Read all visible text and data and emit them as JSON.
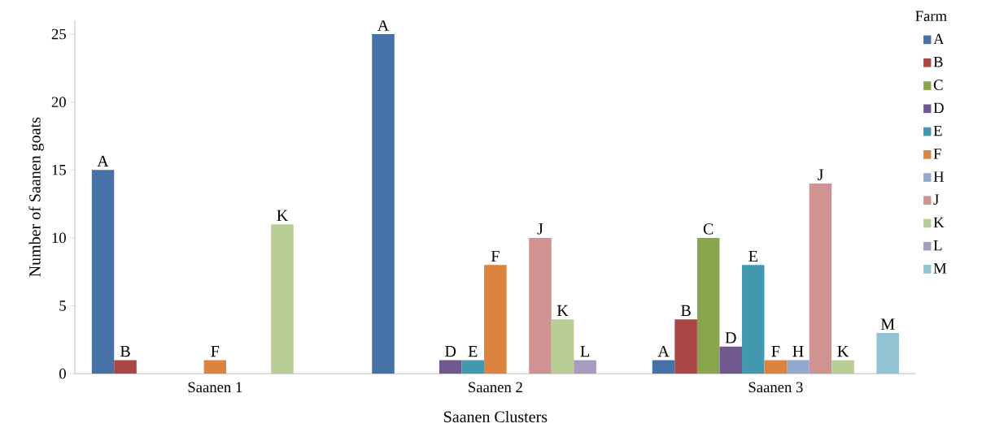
{
  "chart_data": {
    "type": "bar",
    "xlabel": "Saanen Clusters",
    "ylabel": "Number of Saanen goats",
    "legend_title": "Farm",
    "legend": "right",
    "categories": [
      "Saanen 1",
      "Saanen 2",
      "Saanen 3"
    ],
    "ylim": [
      0,
      26
    ],
    "yticks": [
      0,
      5,
      10,
      15,
      20,
      25
    ],
    "grid": false,
    "series": [
      {
        "name": "A",
        "color": "#4572a7",
        "values": [
          15,
          25,
          1
        ],
        "value_labels": [
          "A",
          "A",
          "A"
        ]
      },
      {
        "name": "B",
        "color": "#aa4643",
        "values": [
          1,
          0,
          4
        ],
        "value_labels": [
          "B",
          null,
          "B"
        ]
      },
      {
        "name": "C",
        "color": "#89a54e",
        "values": [
          0,
          0,
          10
        ],
        "value_labels": [
          null,
          null,
          "C"
        ]
      },
      {
        "name": "D",
        "color": "#71588f",
        "values": [
          0,
          1,
          2
        ],
        "value_labels": [
          null,
          "D",
          "D"
        ]
      },
      {
        "name": "E",
        "color": "#4198af",
        "values": [
          0,
          1,
          8
        ],
        "value_labels": [
          null,
          "E",
          "E"
        ]
      },
      {
        "name": "F",
        "color": "#db843d",
        "values": [
          1,
          8,
          1
        ],
        "value_labels": [
          "F",
          "F",
          "F"
        ]
      },
      {
        "name": "H",
        "color": "#93a9cf",
        "values": [
          0,
          0,
          1
        ],
        "value_labels": [
          null,
          null,
          "H"
        ]
      },
      {
        "name": "J",
        "color": "#d19392",
        "values": [
          0,
          10,
          14
        ],
        "value_labels": [
          null,
          "J",
          "J"
        ]
      },
      {
        "name": "K",
        "color": "#b9cd96",
        "values": [
          11,
          4,
          1
        ],
        "value_labels": [
          "K",
          "K",
          "K"
        ]
      },
      {
        "name": "L",
        "color": "#a99bbd",
        "values": [
          0,
          1,
          0
        ],
        "value_labels": [
          null,
          "L",
          null
        ]
      },
      {
        "name": "M",
        "color": "#92c3d3",
        "values": [
          0,
          0,
          3
        ],
        "value_labels": [
          null,
          null,
          "M"
        ]
      }
    ]
  }
}
